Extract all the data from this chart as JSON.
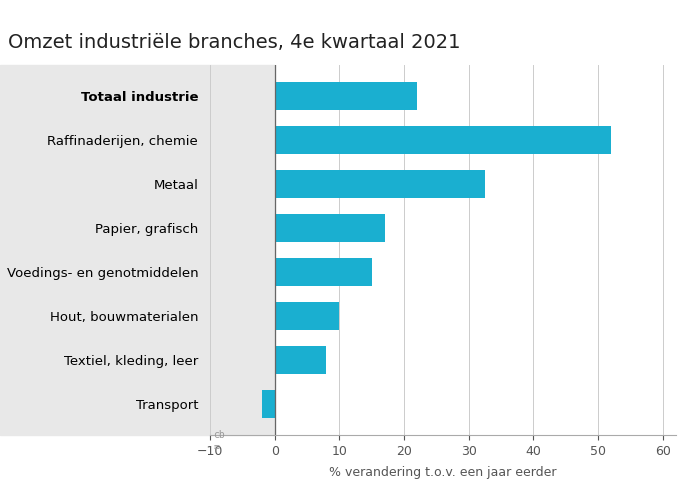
{
  "title": "Omzet industriële branches, 4e kwartaal 2021",
  "categories": [
    "Transport",
    "Textiel, kleding, leer",
    "Hout, bouwmaterialen",
    "Voedings- en genotmiddelen",
    "Papier, grafisch",
    "Metaal",
    "Raffinaderijen, chemie",
    "Totaal industrie"
  ],
  "values": [
    -2,
    8,
    10,
    15,
    17,
    32.5,
    52,
    22
  ],
  "bar_color": "#1aafd0",
  "bold_category": "Totaal industrie",
  "xlabel": "% verandering t.o.v. een jaar eerder",
  "xlim": [
    -10,
    62
  ],
  "xticks": [
    -10,
    0,
    10,
    20,
    30,
    40,
    50,
    60
  ],
  "background_color": "#ffffff",
  "left_panel_color": "#e8e8e8",
  "title_fontsize": 14,
  "axis_fontsize": 9,
  "label_fontsize": 9.5
}
